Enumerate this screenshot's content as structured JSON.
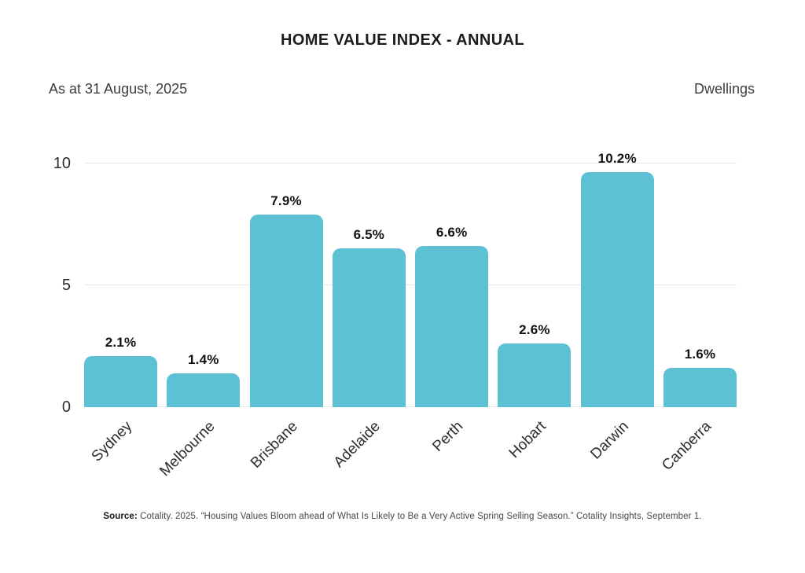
{
  "header": {
    "title": "HOME VALUE INDEX - ANNUAL",
    "as_at": "As at 31 August, 2025",
    "series_label": "Dwellings"
  },
  "footer": {
    "source_label": "Source:",
    "source_text": " Cotality. 2025. “Housing Values Bloom ahead of What Is Likely to Be a Very Active Spring Selling Season.” Cotality Insights, September 1."
  },
  "colors": {
    "bar_fill": "#5dc1d6",
    "gridline": "#e7e7e7",
    "title_text": "#1c1c1e",
    "body_text": "#3d3d3d",
    "value_label_text": "#121212",
    "background": "#ffffff"
  },
  "chart_data": {
    "type": "bar",
    "title": "HOME VALUE INDEX - ANNUAL",
    "subtitle": "As at 31 August, 2025",
    "series_name": "Dwellings",
    "categories": [
      "Sydney",
      "Melbourne",
      "Brisbane",
      "Adelaide",
      "Perth",
      "Hobart",
      "Darwin",
      "Canberra"
    ],
    "values": [
      2.1,
      1.4,
      7.9,
      6.5,
      6.6,
      2.6,
      10.2,
      1.6
    ],
    "value_labels": [
      "2.1%",
      "1.4%",
      "7.9%",
      "6.5%",
      "6.6%",
      "2.6%",
      "10.2%",
      "1.6%"
    ],
    "unit": "percent",
    "yticks": [
      0,
      5,
      10
    ],
    "ylim": [
      0,
      10.5
    ],
    "grid": "horizontal",
    "xlabel": "",
    "ylabel": "",
    "x_tick_rotation": -45,
    "source": "Source: Cotality. 2025. “Housing Values Bloom ahead of What Is Likely to Be a Very Active Spring Selling Season.” Cotality Insights, September 1."
  }
}
